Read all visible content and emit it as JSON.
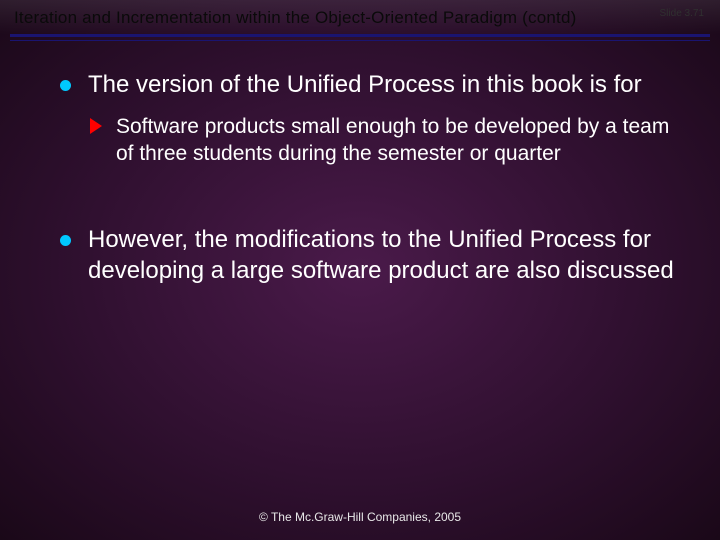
{
  "slide": {
    "title": "Iteration and Incrementation within the Object-Oriented Paradigm (contd)",
    "slide_number": "Slide 3.71",
    "footer": "© The Mc.Graw-Hill Companies, 2005",
    "colors": {
      "bullet_l1": "#00c8ff",
      "bullet_l2": "#ff0000",
      "rule": "#1a1470",
      "text": "#ffffff",
      "title_text": "#0a0a0a",
      "bg_center": "#4a1a4a",
      "bg_edge": "#1a0818"
    },
    "typography": {
      "title_fontsize_pt": 13,
      "body_l1_fontsize_pt": 18,
      "body_l2_fontsize_pt": 16,
      "footer_fontsize_pt": 9,
      "font_family": "Arial"
    },
    "bullets": [
      {
        "level": 1,
        "text": "The version of the Unified Process in this book is for"
      },
      {
        "level": 2,
        "text": "Software products small enough to be developed by a team of three students during the semester or quarter"
      },
      {
        "level": 1,
        "text": "However, the modifications to the Unified Process for developing a large software product are also discussed"
      }
    ]
  }
}
